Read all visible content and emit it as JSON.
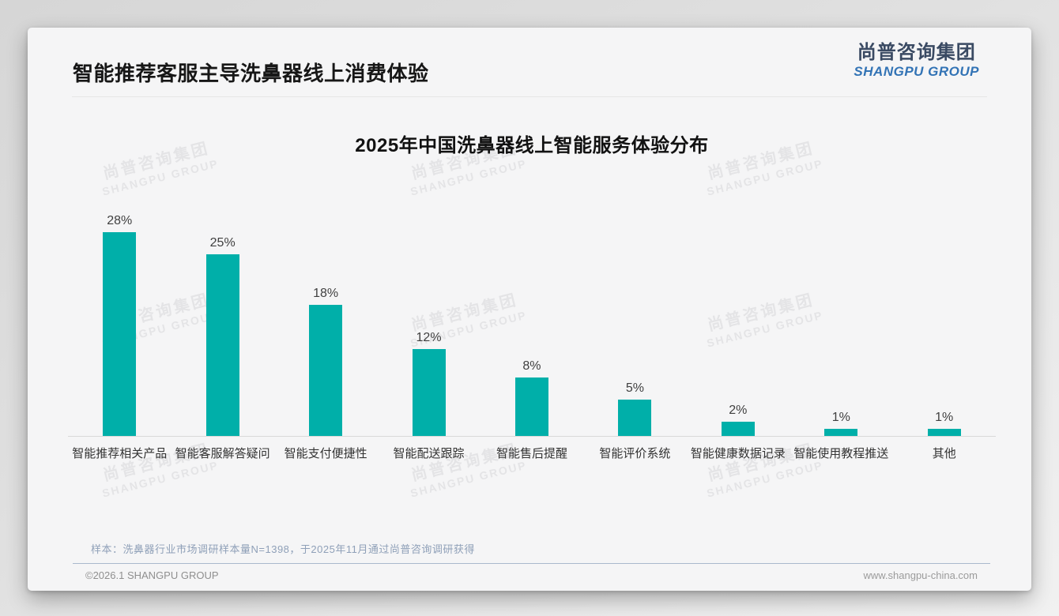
{
  "page": {
    "title": "智能推荐客服主导洗鼻器线上消费体验",
    "logo": {
      "zh": "尚普咨询集团",
      "en": "SHANGPU GROUP"
    },
    "watermark": {
      "zh": "尚普咨询集团",
      "en": "SHANGPU GROUP"
    },
    "footnote": "样本：洗鼻器行业市场调研样本量N=1398，于2025年11月通过尚普咨询调研获得",
    "footer": {
      "left": "©2026.1 SHANGPU GROUP",
      "right": "www.shangpu-china.com"
    }
  },
  "chart_data": {
    "type": "bar",
    "title": "2025年中国洗鼻器线上智能服务体验分布",
    "categories": [
      "智能推荐相关产品",
      "智能客服解答疑问",
      "智能支付便捷性",
      "智能配送跟踪",
      "智能售后提醒",
      "智能评价系统",
      "智能健康数据记录",
      "智能使用教程推送",
      "其他"
    ],
    "values": [
      28,
      25,
      18,
      12,
      8,
      5,
      2,
      1,
      1
    ],
    "value_labels": [
      "28%",
      "25%",
      "18%",
      "12%",
      "8%",
      "5%",
      "2%",
      "1%",
      "1%"
    ],
    "unit": "%",
    "ylim": [
      0,
      30
    ],
    "grid": false,
    "legend": "none",
    "bar_color": "#00AFA9",
    "xlabel": "",
    "ylabel": ""
  }
}
